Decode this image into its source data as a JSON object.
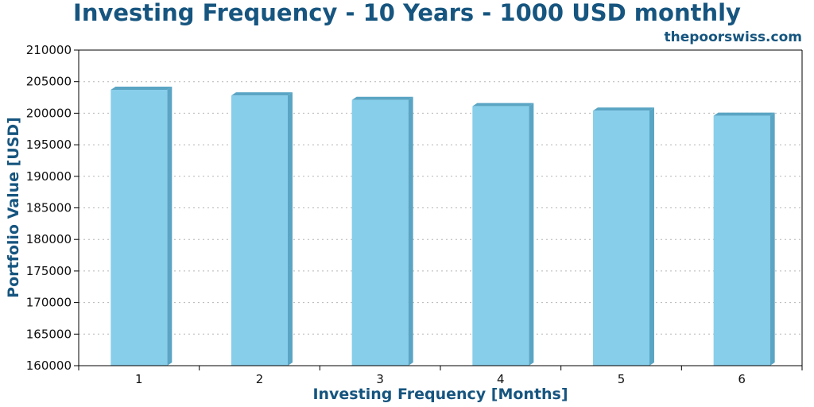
{
  "chart_data": {
    "type": "bar",
    "title": "Investing Frequency - 10 Years - 1000 USD monthly",
    "source": "thepoorswiss.com",
    "xlabel": "Investing Frequency [Months]",
    "ylabel": "Portfolio Value [USD]",
    "categories": [
      "1",
      "2",
      "3",
      "4",
      "5",
      "6"
    ],
    "values": [
      203700,
      202800,
      202100,
      201100,
      200400,
      199600
    ],
    "ylim": [
      160000,
      210000
    ],
    "yticks": [
      "160000",
      "165000",
      "170000",
      "175000",
      "180000",
      "185000",
      "190000",
      "195000",
      "200000",
      "205000",
      "210000"
    ],
    "grid": true,
    "legend": "none",
    "colors": {
      "bar": "#87ceeb",
      "bar_shade": "#5aa5c4",
      "text": "#16557f"
    }
  }
}
